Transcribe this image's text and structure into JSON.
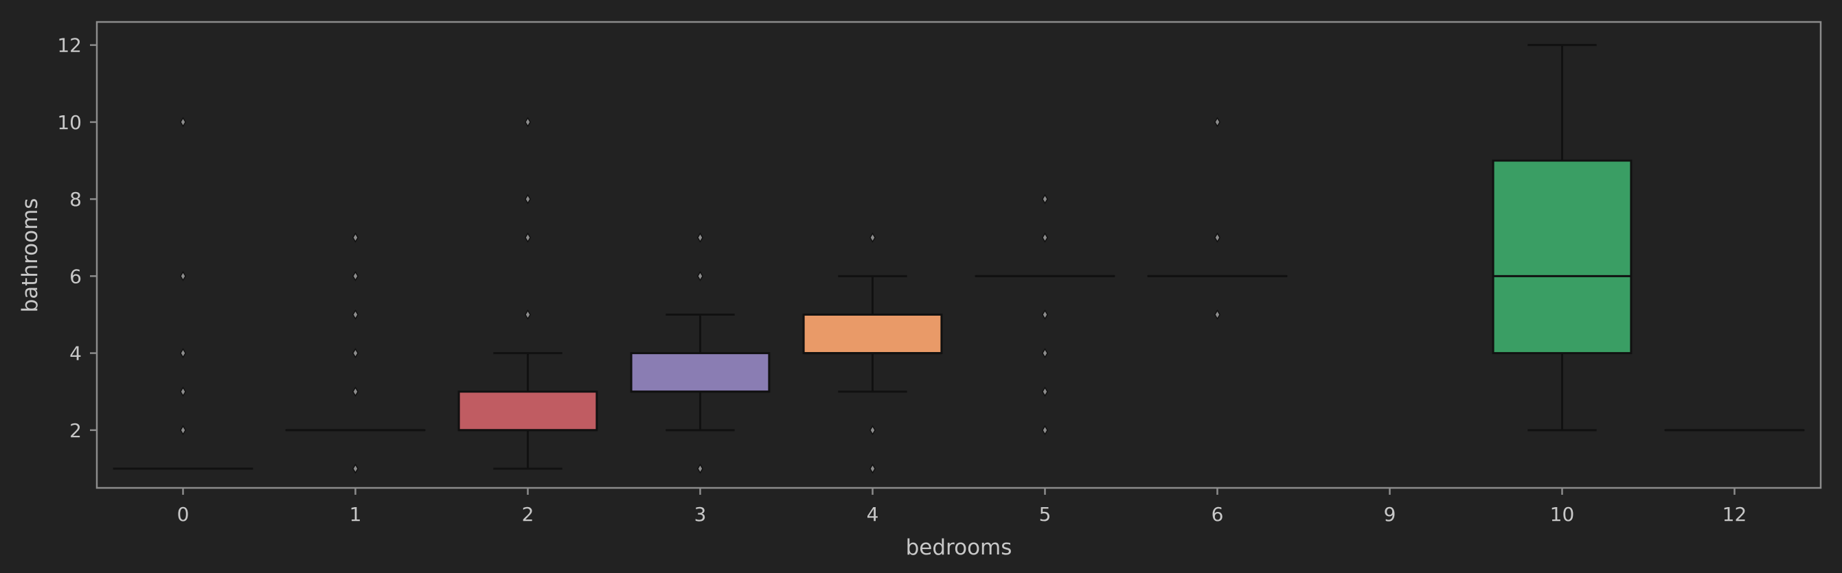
{
  "chart_data": {
    "type": "box",
    "xlabel": "bedrooms",
    "ylabel": "bathrooms",
    "yticks": [
      2,
      4,
      6,
      8,
      10,
      12
    ],
    "ylim": [
      0.5,
      12.6
    ],
    "grid": false,
    "background": "#222222",
    "spine_color": "#8c8c8c",
    "line_color": "#111111",
    "categories": [
      "0",
      "1",
      "2",
      "3",
      "4",
      "5",
      "6",
      "9",
      "10",
      "12"
    ],
    "boxes": [
      {
        "category": "0",
        "q1": 1,
        "median": 1,
        "q3": 1,
        "whisker_low": 1,
        "whisker_high": 1,
        "outliers": [
          2,
          3,
          4,
          6,
          10
        ],
        "color": "#4c72b0"
      },
      {
        "category": "1",
        "q1": 2,
        "median": 2,
        "q3": 2,
        "whisker_low": 2,
        "whisker_high": 2,
        "outliers": [
          1,
          3,
          4,
          5,
          6,
          7
        ],
        "color": "#dd8452"
      },
      {
        "category": "2",
        "q1": 2,
        "median": 2,
        "q3": 3,
        "whisker_low": 1,
        "whisker_high": 4,
        "outliers": [
          5,
          7,
          8,
          10
        ],
        "color": "#c05c62"
      },
      {
        "category": "3",
        "q1": 3,
        "median": 3,
        "q3": 4,
        "whisker_low": 2,
        "whisker_high": 5,
        "outliers": [
          1,
          6,
          7
        ],
        "color": "#8a7db3"
      },
      {
        "category": "4",
        "q1": 4,
        "median": 4,
        "q3": 5,
        "whisker_low": 3,
        "whisker_high": 6,
        "outliers": [
          1,
          2,
          7
        ],
        "color": "#e99a68"
      },
      {
        "category": "5",
        "q1": 6,
        "median": 6,
        "q3": 6,
        "whisker_low": 6,
        "whisker_high": 6,
        "outliers": [
          2,
          3,
          4,
          5,
          7,
          8
        ],
        "color": "#55a868"
      },
      {
        "category": "6",
        "q1": 6,
        "median": 6,
        "q3": 6,
        "whisker_low": 6,
        "whisker_high": 6,
        "outliers": [
          5,
          7,
          10
        ],
        "color": "#c44e52"
      },
      {
        "category": "9",
        "q1": null,
        "median": null,
        "q3": null,
        "whisker_low": null,
        "whisker_high": null,
        "outliers": [],
        "color": "#8172b3"
      },
      {
        "category": "10",
        "q1": 4,
        "median": 6,
        "q3": 9,
        "whisker_low": 2,
        "whisker_high": 12,
        "outliers": [],
        "color": "#3a9e64"
      },
      {
        "category": "12",
        "q1": 2,
        "median": 2,
        "q3": 2,
        "whisker_low": 2,
        "whisker_high": 2,
        "outliers": [],
        "color": "#da8bc3"
      }
    ]
  }
}
